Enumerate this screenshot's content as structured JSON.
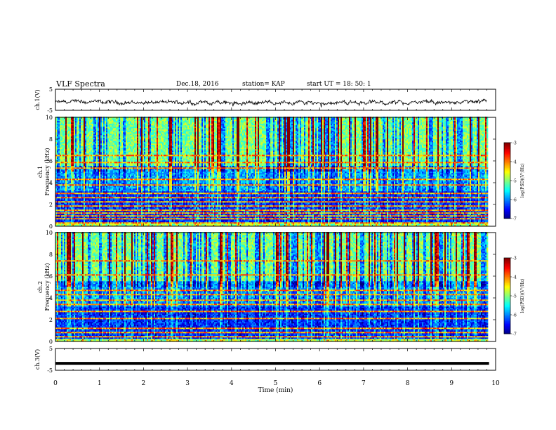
{
  "header": {
    "title": "VLF Spectra",
    "date": "Dec.18, 2016",
    "station": "station= KAP",
    "start": "start  UT =   18: 50: 1"
  },
  "chart_data": [
    {
      "type": "line",
      "ylabel": "ch.1(V)",
      "ylim": [
        -5,
        5
      ],
      "yticks": [
        "5",
        "-5"
      ],
      "xlim": [
        0,
        10
      ],
      "baseline": -1.3,
      "amplitude": 1.1,
      "color": "#000000"
    },
    {
      "type": "heatmap",
      "ylabel": "ch.1\nFrequency (kHz)",
      "ylim": [
        0,
        10
      ],
      "yticks": [
        "0",
        "2",
        "4",
        "6",
        "8",
        "10"
      ],
      "xlim": [
        0,
        10
      ],
      "colorbar": {
        "label": "log(PSD)(V²/Hz)",
        "range": [
          -7,
          -3
        ],
        "ticks": [
          "-3",
          "-4",
          "-5",
          "-6",
          "-7"
        ]
      },
      "bands_khz": [
        0.3,
        0.6,
        0.9,
        1.1,
        1.4,
        1.8,
        2.2,
        2.6,
        3.0,
        3.7,
        4.3,
        5.3,
        5.8,
        6.4
      ]
    },
    {
      "type": "heatmap",
      "ylabel": "ch.2\nFrequency (kHz)",
      "ylim": [
        0,
        10
      ],
      "yticks": [
        "0",
        "2",
        "4",
        "6",
        "8",
        "10"
      ],
      "xlim": [
        0,
        10
      ],
      "colorbar": {
        "label": "log(PSD)(V²/Hz)",
        "range": [
          -7,
          -3
        ],
        "ticks": [
          "-3",
          "-4",
          "-5",
          "-6",
          "-7"
        ]
      },
      "bands_khz": [
        0.4,
        0.8,
        1.2,
        2.0,
        2.7,
        3.4,
        3.8,
        4.2,
        4.7,
        6.0,
        7.4
      ]
    },
    {
      "type": "line",
      "ylabel": "ch.3(V)",
      "ylim": [
        -5,
        5
      ],
      "yticks": [
        "5",
        "-5"
      ],
      "xlim": [
        0,
        10
      ],
      "xticks": [
        "0",
        "1",
        "2",
        "3",
        "4",
        "5",
        "6",
        "7",
        "8",
        "9",
        "10"
      ],
      "xlabel": "Time (min)",
      "value": -1.8,
      "color": "#000000"
    }
  ]
}
